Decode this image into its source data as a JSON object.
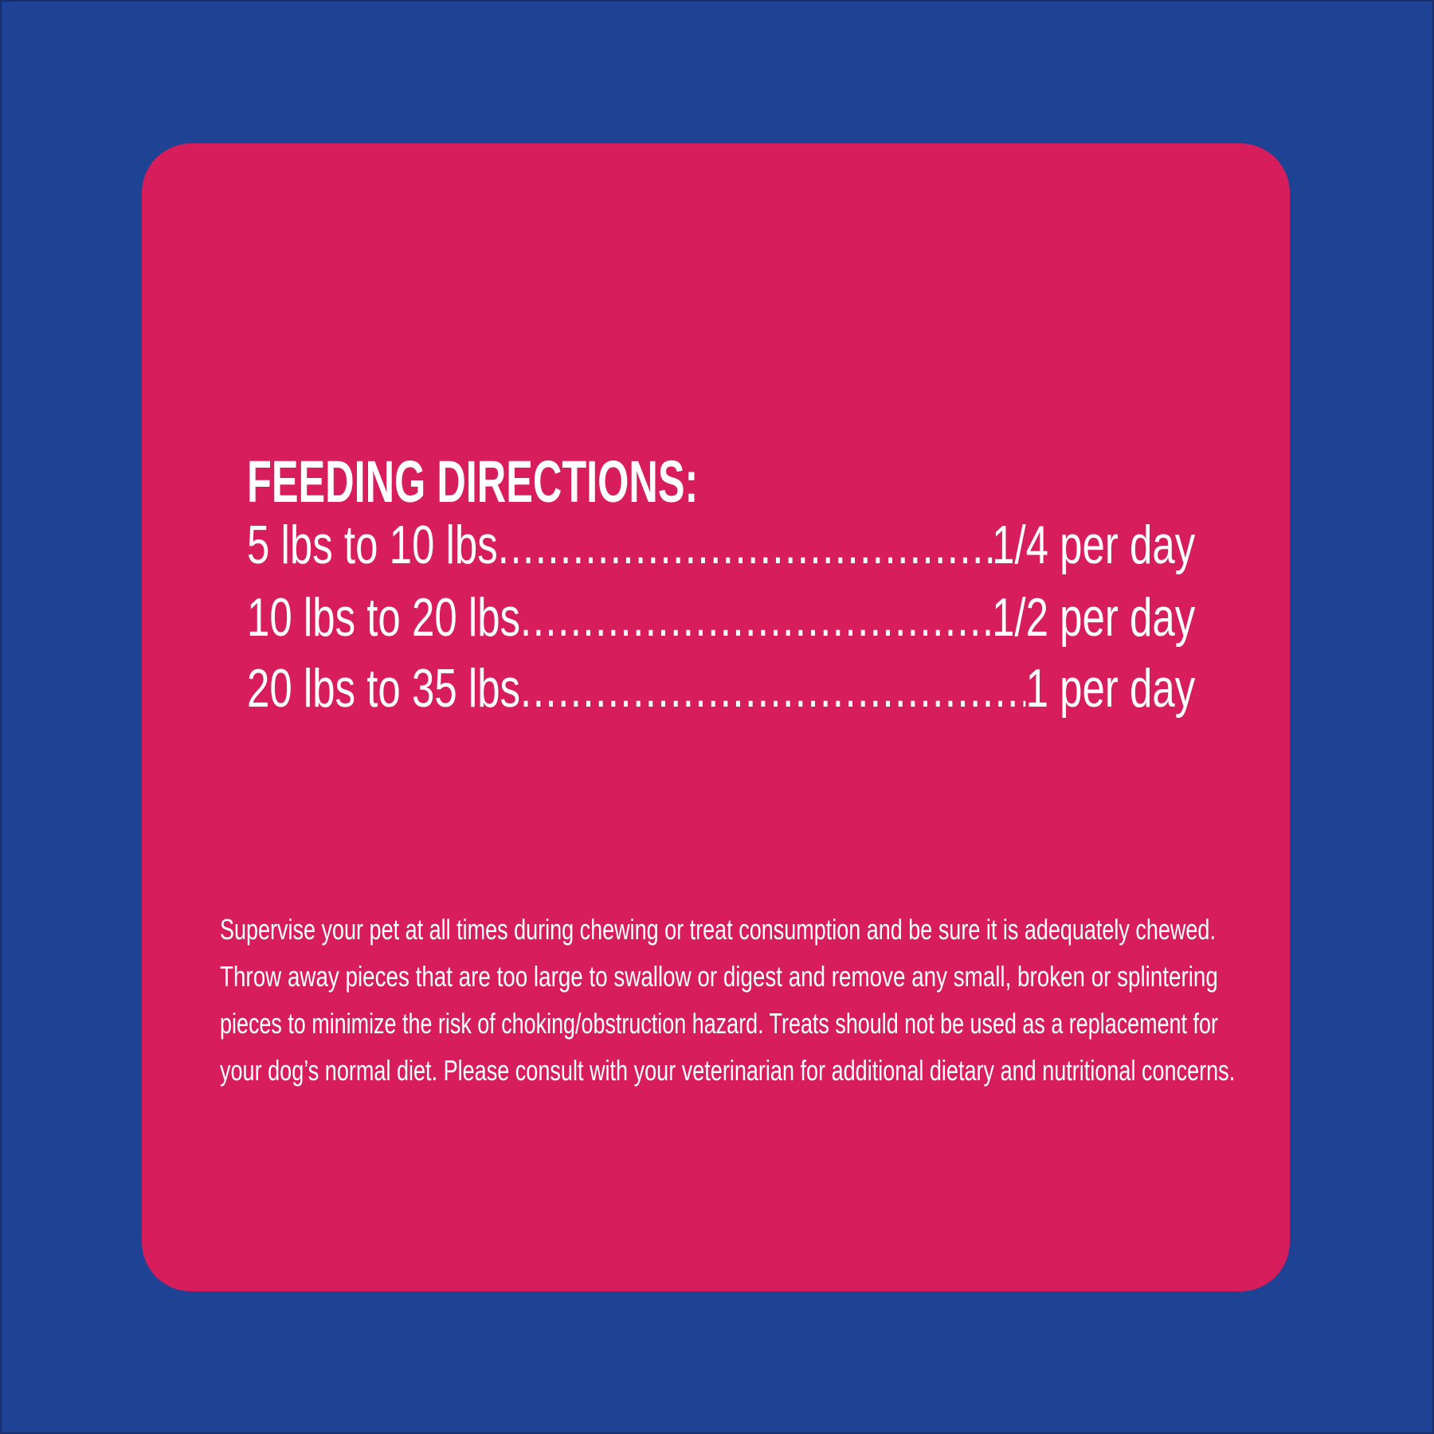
{
  "colors": {
    "background": "#1e4394",
    "card": "#d81d5c",
    "text": "#ffffff"
  },
  "feeding": {
    "heading": "FEEDING DIRECTIONS:",
    "rows": [
      {
        "weight": "5 lbs to 10 lbs",
        "amount": "1/4 per day"
      },
      {
        "weight": "10 lbs to 20 lbs",
        "amount": "1/2 per day"
      },
      {
        "weight": "20 lbs to 35 lbs",
        "amount": "1 per day"
      }
    ]
  },
  "warning": {
    "lines": [
      "Supervise your pet at all times during chewing or treat consumption and be sure it is adequately chewed.",
      "Throw away pieces that are too large to swallow or digest and remove any small, broken or splintering",
      "pieces to minimize the risk of choking/obstruction hazard. Treats should not be used as a replacement for",
      "your dog’s normal diet.  Please consult with your veterinarian for additional dietary and nutritional concerns."
    ]
  }
}
